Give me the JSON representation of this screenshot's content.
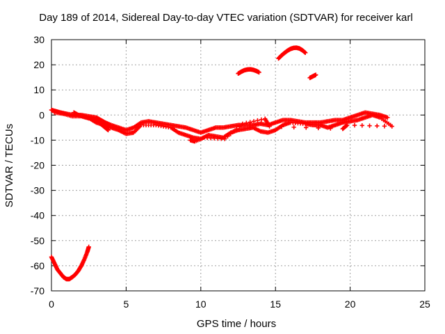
{
  "chart_data": {
    "type": "scatter",
    "title": "Day 189 of 2014, Sidereal Day-to-day VTEC variation (SDTVAR) for receiver karl",
    "xlabel": "GPS time / hours",
    "ylabel": "SDTVAR / TECUs",
    "xlim": [
      0,
      25
    ],
    "ylim": [
      -70,
      30
    ],
    "xticks": [
      0,
      5,
      10,
      15,
      20,
      25
    ],
    "yticks": [
      -70,
      -60,
      -50,
      -40,
      -30,
      -20,
      -10,
      0,
      10,
      20,
      30
    ],
    "xtick_labels": [
      "0",
      "5",
      "10",
      "15",
      "20",
      "25"
    ],
    "ytick_labels": [
      "-70",
      "-60",
      "-50",
      "-40",
      "-30",
      "-20",
      "-10",
      "0",
      "10",
      "20",
      "30"
    ],
    "grid": true,
    "marker": "plus",
    "color": "#ff0000",
    "series": [
      {
        "name": "main-band-upper",
        "x": [
          0.0,
          0.3,
          0.6,
          1.0,
          1.5,
          2.0,
          2.5,
          3.0,
          3.3,
          3.6,
          4.0,
          4.5,
          5.0,
          5.5,
          6.0,
          6.5,
          7.0,
          7.5,
          8.0,
          8.5,
          9.0,
          9.5,
          10.0,
          10.5,
          11.0,
          11.5,
          12.0,
          12.5,
          13.0,
          13.5,
          14.0,
          14.5,
          15.0,
          15.5,
          16.0,
          16.5,
          17.0,
          17.5,
          18.0,
          18.5,
          19.0,
          19.5,
          20.0,
          20.5,
          21.0,
          21.5,
          22.0,
          22.5
        ],
        "y": [
          2,
          1.5,
          1,
          0.5,
          0,
          0,
          -0.5,
          -1,
          -2,
          -3,
          -4,
          -5,
          -6,
          -5,
          -3,
          -2.5,
          -3,
          -3.5,
          -4,
          -4.5,
          -5,
          -6,
          -7,
          -6,
          -5,
          -5,
          -4.5,
          -4,
          -4,
          -4,
          -3.5,
          -4,
          -3,
          -2,
          -2,
          -2.5,
          -3,
          -3,
          -3,
          -2.5,
          -2,
          -2,
          -1,
          0,
          1,
          0.5,
          0,
          -1
        ]
      },
      {
        "name": "main-band-lower",
        "x": [
          0.2,
          0.8,
          1.4,
          2.0,
          2.6,
          3.0,
          3.5,
          4.0,
          4.5,
          5.0,
          5.5,
          6.0,
          7.0,
          8.0,
          8.5,
          9.0,
          9.5,
          10.0,
          10.5,
          11.0,
          11.5,
          12.0,
          12.5,
          13.0,
          13.5,
          14.0,
          14.5,
          15.0,
          15.5,
          16.0,
          17.0,
          17.5,
          18.0,
          18.5,
          19.0,
          19.5,
          20.0,
          20.5,
          21.0,
          21.5,
          22.0,
          22.7
        ],
        "y": [
          1,
          0.5,
          -0.5,
          -0.5,
          -1.5,
          -3,
          -4,
          -5,
          -6,
          -7.5,
          -7,
          -4,
          -4,
          -5,
          -7,
          -8,
          -9,
          -9.5,
          -8,
          -8.5,
          -9,
          -7,
          -6,
          -5.5,
          -5,
          -6.5,
          -7,
          -6,
          -4,
          -3,
          -3.5,
          -4,
          -4,
          -5,
          -4,
          -3,
          -2.5,
          -2,
          -1,
          0,
          -1,
          -4
        ]
      },
      {
        "name": "near-zero-branch",
        "x": [
          1.5,
          1.8,
          2.1,
          2.4,
          2.7,
          3.0,
          3.2,
          3.4,
          3.6,
          3.8
        ],
        "y": [
          1,
          0,
          -0.5,
          -1,
          -1.5,
          -2,
          -3,
          -4,
          -5,
          -6
        ]
      },
      {
        "name": "bottom-left-arc",
        "x": [
          0.0,
          0.2,
          0.4,
          0.6,
          0.8,
          1.0,
          1.2,
          1.4,
          1.6,
          1.8,
          2.0,
          2.2,
          2.4,
          2.5
        ],
        "y": [
          -56.5,
          -59,
          -61.5,
          -63,
          -64.5,
          -65.3,
          -65.3,
          -64.5,
          -63.5,
          -62,
          -60,
          -57.5,
          -54.5,
          -52.5
        ]
      },
      {
        "name": "arc-13h",
        "x": [
          12.5,
          12.7,
          12.9,
          13.1,
          13.3,
          13.5,
          13.7,
          13.9
        ],
        "y": [
          16.5,
          17.2,
          17.8,
          18.1,
          18.2,
          18.0,
          17.6,
          17.0
        ]
      },
      {
        "name": "arc-16h",
        "x": [
          15.2,
          15.4,
          15.6,
          15.8,
          16.0,
          16.2,
          16.4,
          16.6,
          16.8,
          17.0
        ],
        "y": [
          22.5,
          23.7,
          24.7,
          25.6,
          26.3,
          26.7,
          26.8,
          26.5,
          25.8,
          24.8
        ]
      },
      {
        "name": "short-segment-17h",
        "x": [
          17.3,
          17.5,
          17.7
        ],
        "y": [
          14.8,
          15.4,
          16.0
        ]
      },
      {
        "name": "scatter-extra",
        "x": [
          9.3,
          9.6,
          10.2,
          11.6,
          12.8,
          14.3,
          14.6,
          19.5,
          19.8,
          22.8
        ],
        "y": [
          -10,
          -10.5,
          -9,
          -9.5,
          -3.5,
          -1.5,
          -4.5,
          -5.5,
          -4,
          -4.5
        ]
      }
    ]
  }
}
